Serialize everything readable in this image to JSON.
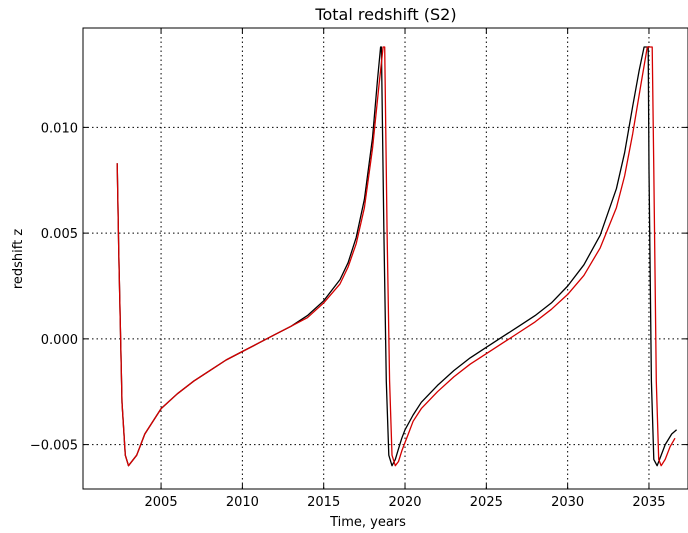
{
  "chart_data": {
    "type": "line",
    "title": "Total redshift (S2)",
    "xlabel": "Time, years",
    "ylabel": "redshift z",
    "xlim": [
      2000.2,
      2037.4
    ],
    "ylim": [
      -0.0071,
      0.0147
    ],
    "xticks": [
      2005,
      2010,
      2015,
      2020,
      2025,
      2030,
      2035
    ],
    "xtick_labels": [
      "2005",
      "2010",
      "2015",
      "2020",
      "2025",
      "2030",
      "2035"
    ],
    "yticks": [
      -0.005,
      0.0,
      0.005,
      0.01
    ],
    "ytick_labels": [
      "−0.005",
      "0.000",
      "0.005",
      "0.010"
    ],
    "grid": true,
    "series": [
      {
        "color": "#000000",
        "x": [
          2002.3,
          2002.4,
          2002.6,
          2002.8,
          2003.0,
          2003.5,
          2004.0,
          2005.0,
          2006.0,
          2007.0,
          2008.0,
          2009.0,
          2010.0,
          2011.0,
          2012.0,
          2013.0,
          2014.0,
          2015.0,
          2016.0,
          2016.5,
          2017.0,
          2017.5,
          2018.0,
          2018.3,
          2018.5,
          2018.55,
          2018.7,
          2018.85,
          2019.0,
          2019.2,
          2019.4,
          2019.6,
          2019.8,
          2020.0,
          2020.5,
          2021.0,
          2022.0,
          2023.0,
          2024.0,
          2025.0,
          2026.0,
          2027.0,
          2028.0,
          2029.0,
          2030.0,
          2031.0,
          2032.0,
          2033.0,
          2033.5,
          2034.0,
          2034.4,
          2034.7,
          2034.95,
          2035.0,
          2035.15,
          2035.3,
          2035.5,
          2035.7,
          2036.0,
          2036.4,
          2036.7
        ],
        "y": [
          0.0083,
          0.004,
          -0.003,
          -0.0055,
          -0.006,
          -0.0055,
          -0.0045,
          -0.0033,
          -0.0026,
          -0.002,
          -0.0015,
          -0.001,
          -0.0006,
          -0.0002,
          0.0002,
          0.0006,
          0.0011,
          0.0018,
          0.0028,
          0.0036,
          0.0048,
          0.0066,
          0.0095,
          0.0122,
          0.0138,
          0.0138,
          0.005,
          -0.002,
          -0.0055,
          -0.006,
          -0.0057,
          -0.0052,
          -0.0047,
          -0.0043,
          -0.0036,
          -0.003,
          -0.0022,
          -0.0015,
          -0.0009,
          -0.0004,
          0.0001,
          0.0006,
          0.0011,
          0.0017,
          0.0025,
          0.0035,
          0.0049,
          0.0071,
          0.0088,
          0.011,
          0.0127,
          0.0138,
          0.0138,
          0.008,
          -0.002,
          -0.0057,
          -0.006,
          -0.0056,
          -0.005,
          -0.0045,
          -0.0043
        ]
      },
      {
        "color": "#d40000",
        "x": [
          2002.3,
          2002.4,
          2002.6,
          2002.8,
          2003.0,
          2003.5,
          2004.0,
          2005.0,
          2006.0,
          2007.0,
          2008.0,
          2009.0,
          2010.0,
          2011.0,
          2012.0,
          2013.0,
          2014.0,
          2015.0,
          2016.0,
          2016.5,
          2017.0,
          2017.5,
          2018.0,
          2018.4,
          2018.65,
          2018.75,
          2018.9,
          2019.05,
          2019.2,
          2019.4,
          2019.6,
          2019.8,
          2020.0,
          2020.2,
          2020.5,
          2021.0,
          2022.0,
          2023.0,
          2024.0,
          2025.0,
          2026.0,
          2027.0,
          2028.0,
          2029.0,
          2030.0,
          2031.0,
          2032.0,
          2033.0,
          2033.5,
          2034.0,
          2034.5,
          2034.9,
          2035.2,
          2035.3,
          2035.45,
          2035.6,
          2035.75,
          2036.0,
          2036.3,
          2036.6
        ],
        "y": [
          0.0083,
          0.004,
          -0.003,
          -0.0055,
          -0.006,
          -0.0055,
          -0.0045,
          -0.0033,
          -0.0026,
          -0.002,
          -0.0015,
          -0.001,
          -0.0006,
          -0.0002,
          0.0002,
          0.0006,
          0.001,
          0.0017,
          0.0026,
          0.0034,
          0.0045,
          0.0062,
          0.009,
          0.012,
          0.0138,
          0.0138,
          0.005,
          -0.002,
          -0.0055,
          -0.006,
          -0.0058,
          -0.0053,
          -0.0049,
          -0.0045,
          -0.0039,
          -0.0033,
          -0.0025,
          -0.0018,
          -0.0012,
          -0.0007,
          -0.0002,
          0.0003,
          0.0008,
          0.0014,
          0.0021,
          0.003,
          0.0043,
          0.0062,
          0.0077,
          0.0097,
          0.012,
          0.0138,
          0.0138,
          0.008,
          -0.002,
          -0.0057,
          -0.006,
          -0.0057,
          -0.0051,
          -0.0047
        ]
      }
    ]
  }
}
